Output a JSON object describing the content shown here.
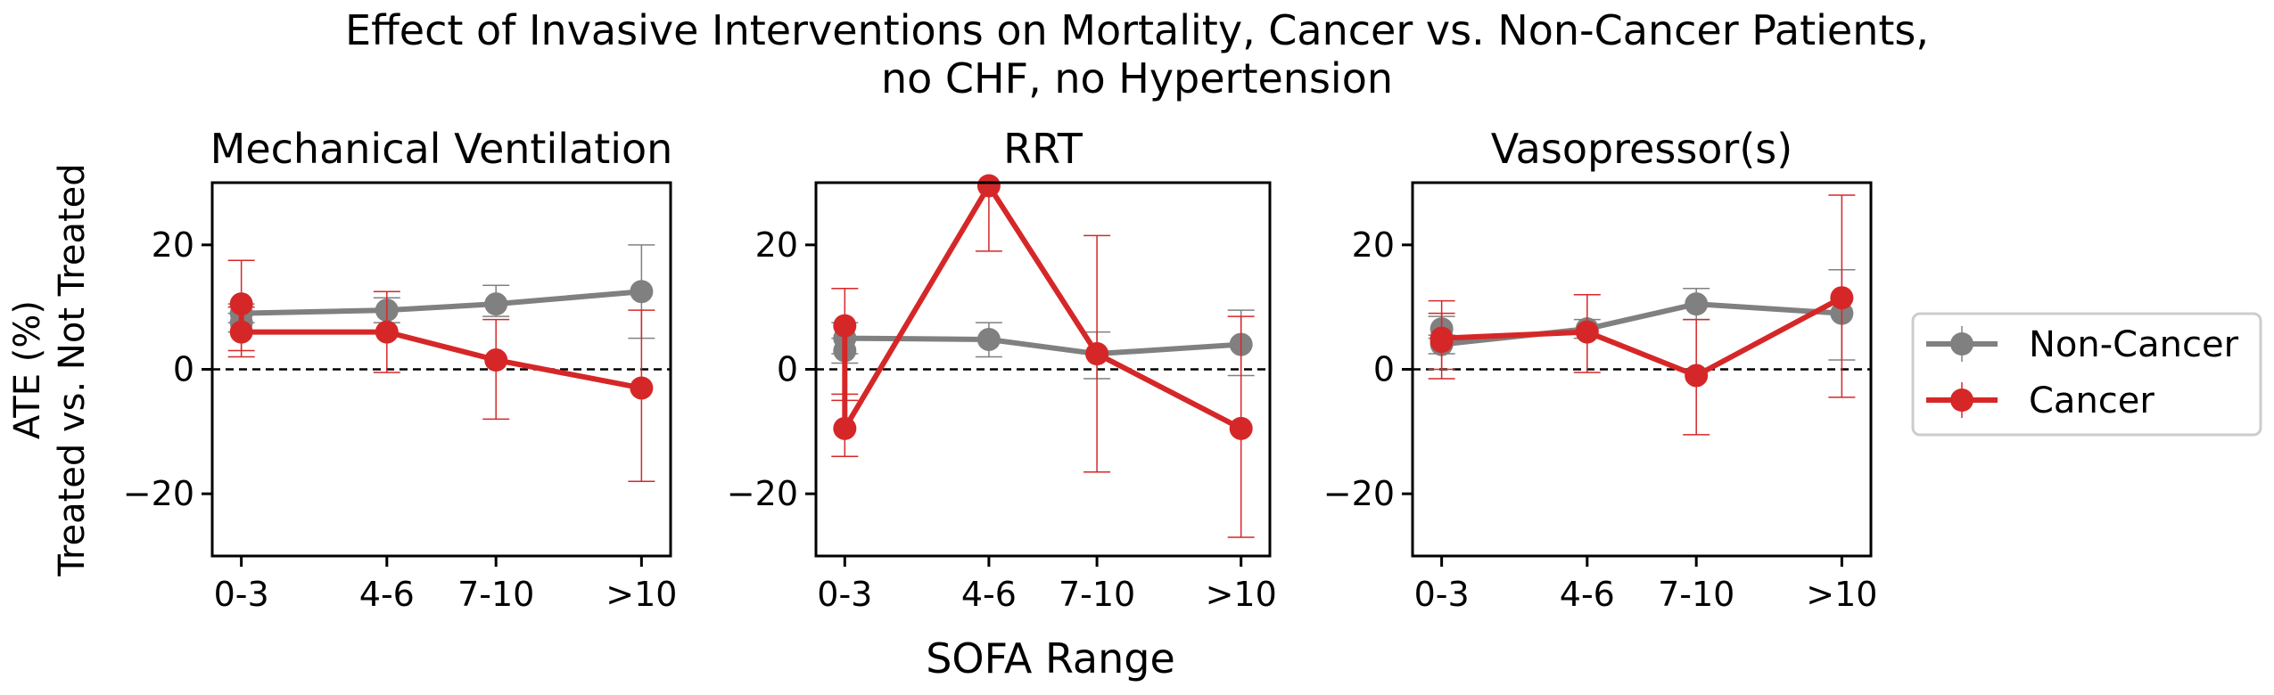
{
  "figure": {
    "title_line1": "Effect of Invasive Interventions on Mortality, Cancer vs. Non-Cancer Patients,",
    "title_line2": "no CHF, no Hypertension",
    "ylabel_line1": "ATE (%)",
    "ylabel_line2": "Treated vs. Not Treated",
    "xlabel": "SOFA Range"
  },
  "legend": {
    "items": [
      {
        "label": "Non-Cancer",
        "color": "#808080"
      },
      {
        "label": "Cancer",
        "color": "#d62728"
      }
    ]
  },
  "chart_data": [
    {
      "type": "line",
      "title": "Mechanical Ventilation",
      "categories": [
        "0-3",
        "4-6",
        "7-10",
        ">10"
      ],
      "x": [
        0,
        2,
        3.5,
        5.5
      ],
      "ylim": [
        -30,
        30
      ],
      "yticks": [
        -20,
        0,
        20
      ],
      "reference_line": 0,
      "series": [
        {
          "name": "Non-Cancer",
          "color": "#808080",
          "points": [
            [
              0,
              7.5
            ],
            [
              0,
              9
            ],
            [
              2,
              9.5
            ],
            [
              3.5,
              10.5
            ],
            [
              5.5,
              12.5
            ]
          ],
          "err_low": [
            6,
            7.5,
            7.5,
            8.5,
            5
          ],
          "err_high": [
            9,
            10.5,
            11.5,
            13.5,
            20
          ]
        },
        {
          "name": "Cancer",
          "color": "#d62728",
          "points": [
            [
              0,
              10.5
            ],
            [
              0,
              6
            ],
            [
              2,
              6
            ],
            [
              3.5,
              1.5
            ],
            [
              5.5,
              -3
            ]
          ],
          "err_low": [
            3,
            2,
            -0.5,
            -8,
            -18
          ],
          "err_high": [
            17.5,
            10,
            12.5,
            8,
            9.5
          ]
        }
      ]
    },
    {
      "type": "line",
      "title": "RRT",
      "categories": [
        "0-3",
        "4-6",
        "7-10",
        ">10"
      ],
      "x": [
        0,
        2,
        3.5,
        5.5
      ],
      "ylim": [
        -30,
        30
      ],
      "yticks": [
        -20,
        0,
        20
      ],
      "reference_line": 0,
      "series": [
        {
          "name": "Non-Cancer",
          "color": "#808080",
          "points": [
            [
              0,
              3
            ],
            [
              0,
              5
            ],
            [
              2,
              4.8
            ],
            [
              3.5,
              2.5
            ],
            [
              5.5,
              4
            ]
          ],
          "err_low": [
            1,
            2.5,
            2,
            -1.5,
            -1
          ],
          "err_high": [
            5,
            7.5,
            7.5,
            6,
            9.5
          ]
        },
        {
          "name": "Cancer",
          "color": "#d62728",
          "points": [
            [
              0,
              7
            ],
            [
              0,
              -9.5
            ],
            [
              2,
              29.5
            ],
            [
              3.5,
              2.5
            ],
            [
              5.5,
              -9.5
            ]
          ],
          "err_low": [
            -5,
            -14,
            19,
            -16.5,
            -27
          ],
          "err_high": [
            13,
            -4,
            40,
            21.5,
            8.5
          ]
        }
      ]
    },
    {
      "type": "line",
      "title": "Vasopressor(s)",
      "categories": [
        "0-3",
        "4-6",
        "7-10",
        ">10"
      ],
      "x": [
        0,
        2,
        3.5,
        5.5
      ],
      "ylim": [
        -30,
        30
      ],
      "yticks": [
        -20,
        0,
        20
      ],
      "reference_line": 0,
      "series": [
        {
          "name": "Non-Cancer",
          "color": "#808080",
          "points": [
            [
              0,
              6.5
            ],
            [
              0,
              4
            ],
            [
              2,
              6.5
            ],
            [
              3.5,
              10.5
            ],
            [
              5.5,
              9
            ]
          ],
          "err_low": [
            5,
            2.5,
            5,
            8,
            1.5
          ],
          "err_high": [
            8.5,
            5.5,
            8,
            13,
            16
          ]
        },
        {
          "name": "Cancer",
          "color": "#d62728",
          "points": [
            [
              0,
              4.5
            ],
            [
              0,
              5
            ],
            [
              2,
              6
            ],
            [
              3.5,
              -1
            ],
            [
              5.5,
              11.5
            ]
          ],
          "err_low": [
            -1.5,
            0,
            -0.5,
            -10.5,
            -4.5
          ],
          "err_high": [
            11,
            9,
            12,
            8,
            28
          ]
        }
      ]
    }
  ]
}
